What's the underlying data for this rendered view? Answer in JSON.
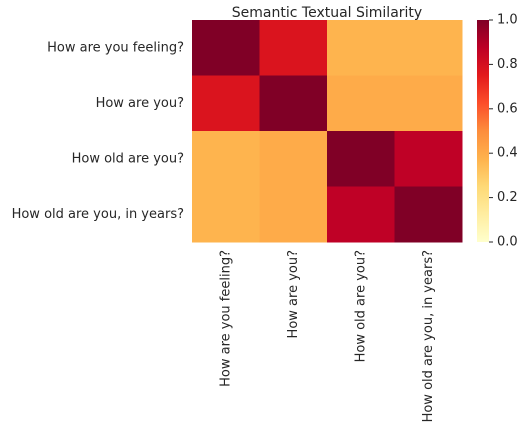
{
  "chart_data": {
    "type": "heatmap",
    "title": "Semantic Textual Similarity",
    "x_categories": [
      "How are you feeling?",
      "How are you?",
      "How old are you?",
      "How old are you, in years?"
    ],
    "y_categories": [
      "How are you feeling?",
      "How are you?",
      "How old are you?",
      "How old are you, in years?"
    ],
    "values": [
      [
        1.0,
        0.78,
        0.37,
        0.37
      ],
      [
        0.78,
        1.0,
        0.4,
        0.4
      ],
      [
        0.37,
        0.4,
        1.0,
        0.87
      ],
      [
        0.37,
        0.4,
        0.87,
        1.0
      ]
    ],
    "colormap": [
      "#ffffcc",
      "#ffeda0",
      "#fed976",
      "#feb24c",
      "#fd8d3c",
      "#fc4e2a",
      "#e31a1c",
      "#bd0026",
      "#800026"
    ],
    "clim": [
      0,
      1
    ],
    "cticks": [
      {
        "value": 0,
        "label": "0.0"
      },
      0.2,
      0.4,
      0.6,
      0.8,
      {
        "value": 1,
        "label": "1.0"
      }
    ]
  }
}
